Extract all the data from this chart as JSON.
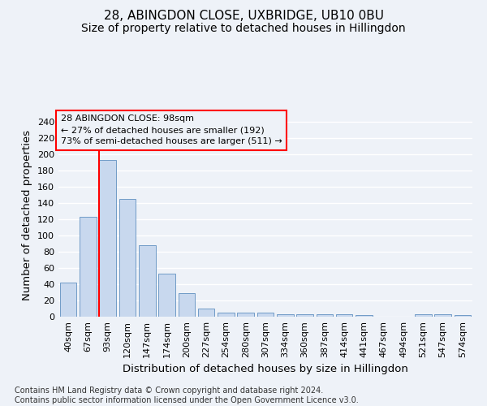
{
  "title1": "28, ABINGDON CLOSE, UXBRIDGE, UB10 0BU",
  "title2": "Size of property relative to detached houses in Hillingdon",
  "xlabel": "Distribution of detached houses by size in Hillingdon",
  "ylabel": "Number of detached properties",
  "categories": [
    "40sqm",
    "67sqm",
    "93sqm",
    "120sqm",
    "147sqm",
    "174sqm",
    "200sqm",
    "227sqm",
    "254sqm",
    "280sqm",
    "307sqm",
    "334sqm",
    "360sqm",
    "387sqm",
    "414sqm",
    "441sqm",
    "467sqm",
    "494sqm",
    "521sqm",
    "547sqm",
    "574sqm"
  ],
  "values": [
    42,
    123,
    193,
    145,
    88,
    53,
    29,
    10,
    5,
    5,
    5,
    3,
    3,
    3,
    3,
    2,
    0,
    0,
    3,
    3,
    2
  ],
  "bar_color": "#c8d8ee",
  "bar_edge_color": "#6090c0",
  "ylim": [
    0,
    250
  ],
  "yticks": [
    0,
    20,
    40,
    60,
    80,
    100,
    120,
    140,
    160,
    180,
    200,
    220,
    240
  ],
  "vline_x_index": 2,
  "annotation_title": "28 ABINGDON CLOSE: 98sqm",
  "annotation_line1": "← 27% of detached houses are smaller (192)",
  "annotation_line2": "73% of semi-detached houses are larger (511) →",
  "footer1": "Contains HM Land Registry data © Crown copyright and database right 2024.",
  "footer2": "Contains public sector information licensed under the Open Government Licence v3.0.",
  "background_color": "#eef2f8",
  "grid_color": "#ffffff",
  "title_fontsize": 11,
  "subtitle_fontsize": 10,
  "axis_label_fontsize": 9.5,
  "tick_fontsize": 8,
  "annotation_fontsize": 8,
  "footer_fontsize": 7
}
